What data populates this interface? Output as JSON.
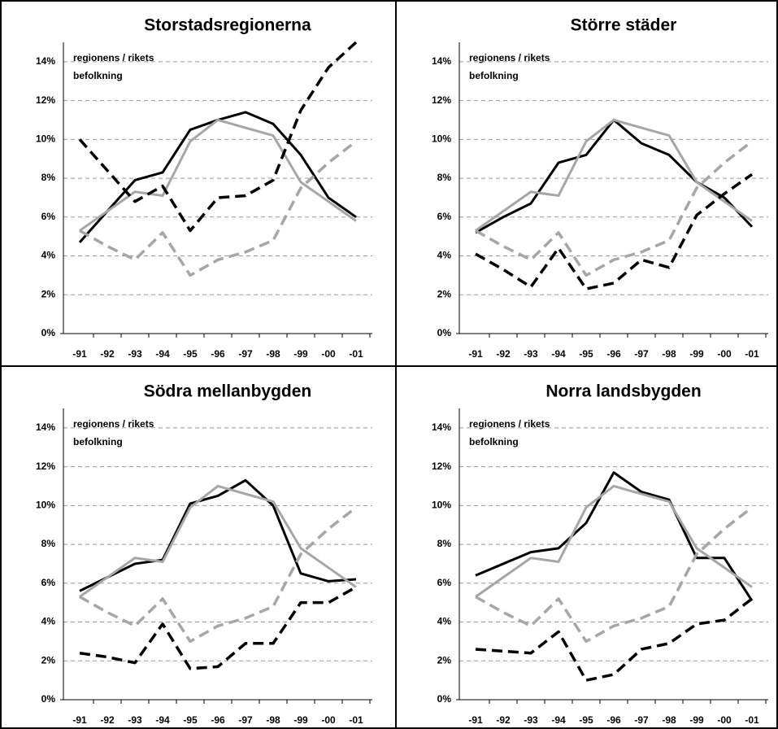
{
  "chart_data": [
    {
      "type": "line",
      "title": "Storstadsregionerna",
      "annotations": [
        "regionens / rikets",
        "befolkning"
      ],
      "categories": [
        "-91",
        "-92",
        "-93",
        "-94",
        "-95",
        "-96",
        "-97",
        "-98",
        "-99",
        "-00",
        "-01"
      ],
      "ylim": [
        0,
        15
      ],
      "yticks": [
        {
          "value": 0,
          "label": "0%"
        },
        {
          "value": 2,
          "label": "2%"
        },
        {
          "value": 4,
          "label": "4%"
        },
        {
          "value": 6,
          "label": "6%"
        },
        {
          "value": 8,
          "label": "8%"
        },
        {
          "value": 10,
          "label": "10%"
        },
        {
          "value": 12,
          "label": "12%"
        },
        {
          "value": 14,
          "label": "14%"
        }
      ],
      "grid": true,
      "series": [
        {
          "color": "#000000",
          "dashed": false,
          "values": [
            4.7,
            6.3,
            7.9,
            8.3,
            10.5,
            11.0,
            11.4,
            10.8,
            9.2,
            7.0,
            6.0
          ]
        },
        {
          "color": "#a6a6a6",
          "dashed": false,
          "values": [
            5.3,
            6.3,
            7.3,
            7.1,
            9.9,
            11.0,
            10.6,
            10.2,
            7.8,
            6.8,
            5.8
          ]
        },
        {
          "color": "#000000",
          "dashed": true,
          "values": [
            10.0,
            8.4,
            6.8,
            7.6,
            5.3,
            7.0,
            7.1,
            7.9,
            11.5,
            13.7,
            15.0
          ]
        },
        {
          "color": "#a6a6a6",
          "dashed": true,
          "values": [
            5.3,
            4.5,
            3.8,
            5.2,
            3.0,
            3.8,
            4.2,
            4.8,
            7.5,
            8.8,
            9.9
          ]
        }
      ]
    },
    {
      "type": "line",
      "title": "Större städer",
      "annotations": [
        "regionens / rikets",
        "befolkning"
      ],
      "categories": [
        "-91",
        "-92",
        "-93",
        "-94",
        "-95",
        "-96",
        "-97",
        "-98",
        "-99",
        "-00",
        "-01"
      ],
      "ylim": [
        0,
        15
      ],
      "yticks": [
        {
          "value": 0,
          "label": "0%"
        },
        {
          "value": 2,
          "label": "2%"
        },
        {
          "value": 4,
          "label": "4%"
        },
        {
          "value": 6,
          "label": "6%"
        },
        {
          "value": 8,
          "label": "8%"
        },
        {
          "value": 10,
          "label": "10%"
        },
        {
          "value": 12,
          "label": "12%"
        },
        {
          "value": 14,
          "label": "14%"
        }
      ],
      "grid": true,
      "series": [
        {
          "color": "#000000",
          "dashed": false,
          "values": [
            5.2,
            6.0,
            6.7,
            8.8,
            9.2,
            11.0,
            9.8,
            9.2,
            7.8,
            7.0,
            5.5
          ]
        },
        {
          "color": "#a6a6a6",
          "dashed": false,
          "values": [
            5.3,
            6.3,
            7.3,
            7.1,
            9.9,
            11.0,
            10.6,
            10.2,
            7.8,
            6.8,
            5.8
          ]
        },
        {
          "color": "#000000",
          "dashed": true,
          "values": [
            4.1,
            3.3,
            2.4,
            4.4,
            2.3,
            2.6,
            3.8,
            3.4,
            6.1,
            7.2,
            8.2
          ]
        },
        {
          "color": "#a6a6a6",
          "dashed": true,
          "values": [
            5.3,
            4.5,
            3.8,
            5.2,
            3.0,
            3.8,
            4.2,
            4.8,
            7.5,
            8.8,
            9.9
          ]
        }
      ]
    },
    {
      "type": "line",
      "title": "Södra mellanbygden",
      "annotations": [
        "regionens / rikets",
        "befolkning"
      ],
      "categories": [
        "-91",
        "-92",
        "-93",
        "-94",
        "-95",
        "-96",
        "-97",
        "-98",
        "-99",
        "-00",
        "-01"
      ],
      "ylim": [
        0,
        15
      ],
      "yticks": [
        {
          "value": 0,
          "label": "0%"
        },
        {
          "value": 2,
          "label": "2%"
        },
        {
          "value": 4,
          "label": "4%"
        },
        {
          "value": 6,
          "label": "6%"
        },
        {
          "value": 8,
          "label": "8%"
        },
        {
          "value": 10,
          "label": "10%"
        },
        {
          "value": 12,
          "label": "12%"
        },
        {
          "value": 14,
          "label": "14%"
        }
      ],
      "grid": true,
      "series": [
        {
          "color": "#000000",
          "dashed": false,
          "values": [
            5.6,
            6.3,
            7.0,
            7.2,
            10.1,
            10.5,
            11.3,
            10.0,
            6.5,
            6.1,
            6.2
          ]
        },
        {
          "color": "#a6a6a6",
          "dashed": false,
          "values": [
            5.3,
            6.3,
            7.3,
            7.1,
            9.9,
            11.0,
            10.6,
            10.2,
            7.8,
            6.8,
            5.8
          ]
        },
        {
          "color": "#000000",
          "dashed": true,
          "values": [
            2.4,
            2.2,
            1.9,
            3.9,
            1.6,
            1.7,
            2.9,
            2.9,
            5.0,
            5.0,
            5.8
          ]
        },
        {
          "color": "#a6a6a6",
          "dashed": true,
          "values": [
            5.3,
            4.5,
            3.8,
            5.2,
            3.0,
            3.8,
            4.2,
            4.8,
            7.5,
            8.8,
            9.9
          ]
        }
      ]
    },
    {
      "type": "line",
      "title": "Norra landsbygden",
      "annotations": [
        "regionens / rikets",
        "befolkning"
      ],
      "categories": [
        "-91",
        "-92",
        "-93",
        "-94",
        "-95",
        "-96",
        "-97",
        "-98",
        "-99",
        "-00",
        "-01"
      ],
      "ylim": [
        0,
        15
      ],
      "yticks": [
        {
          "value": 0,
          "label": "0%"
        },
        {
          "value": 2,
          "label": "2%"
        },
        {
          "value": 4,
          "label": "4%"
        },
        {
          "value": 6,
          "label": "6%"
        },
        {
          "value": 8,
          "label": "8%"
        },
        {
          "value": 10,
          "label": "10%"
        },
        {
          "value": 12,
          "label": "12%"
        },
        {
          "value": 14,
          "label": "14%"
        }
      ],
      "grid": true,
      "series": [
        {
          "color": "#000000",
          "dashed": false,
          "values": [
            6.4,
            7.0,
            7.6,
            7.8,
            9.1,
            11.7,
            10.7,
            10.3,
            7.3,
            7.3,
            5.1
          ]
        },
        {
          "color": "#a6a6a6",
          "dashed": false,
          "values": [
            5.3,
            6.3,
            7.3,
            7.1,
            9.9,
            11.0,
            10.6,
            10.2,
            7.8,
            6.8,
            5.8
          ]
        },
        {
          "color": "#000000",
          "dashed": true,
          "values": [
            2.6,
            2.5,
            2.4,
            3.5,
            1.0,
            1.3,
            2.6,
            2.9,
            3.9,
            4.1,
            5.2
          ]
        },
        {
          "color": "#a6a6a6",
          "dashed": true,
          "values": [
            5.3,
            4.5,
            3.8,
            5.2,
            3.0,
            3.8,
            4.2,
            4.8,
            7.5,
            8.8,
            9.9
          ]
        }
      ]
    }
  ]
}
